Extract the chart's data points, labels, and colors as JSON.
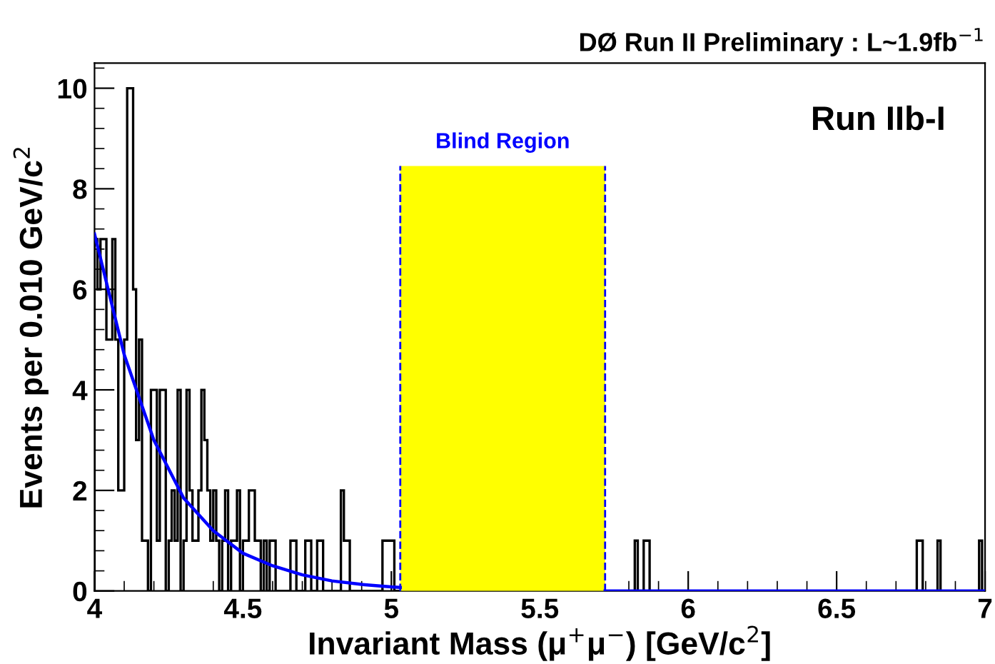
{
  "chart_data": {
    "type": "histogram",
    "title": "DØ Run II Preliminary : L~1.9fb$^{−1}$",
    "xlabel": "Invariant Mass (μ$^{+}$μ$^{−}$) [GeV/c$^{2}$]",
    "ylabel": "Events per 0.010 GeV/c$^{2}$",
    "annotations": [
      "Run IIb-I"
    ],
    "bins": [
      4.0,
      4.01,
      4.02,
      4.03,
      4.04,
      4.05,
      4.06,
      4.07,
      4.08,
      4.09,
      4.1,
      4.11,
      4.12,
      4.13,
      4.14,
      4.15,
      4.16,
      4.17,
      4.18,
      4.19,
      4.2,
      4.21,
      4.22,
      4.23,
      4.24,
      4.25,
      4.26,
      4.27,
      4.28,
      4.29,
      4.3,
      4.31,
      4.32,
      4.33,
      4.34,
      4.35,
      4.36,
      4.37,
      4.38,
      4.39,
      4.4,
      4.41,
      4.42,
      4.43,
      4.44,
      4.45,
      4.46,
      4.47,
      4.48,
      4.49,
      4.5,
      4.51,
      4.52,
      4.53,
      4.54,
      4.55,
      4.56,
      4.57,
      4.58,
      4.59,
      4.6,
      4.61,
      4.62,
      4.63,
      4.64,
      4.65,
      4.66,
      4.67,
      4.68,
      4.69,
      4.7,
      4.71,
      4.72,
      4.73,
      4.74,
      4.75,
      4.76,
      4.77,
      4.78,
      4.79,
      4.8,
      4.81,
      4.82,
      4.83,
      4.84,
      4.85,
      4.86,
      4.87,
      4.88,
      4.89,
      4.9,
      4.91,
      4.92,
      4.93,
      4.94,
      4.95,
      4.96,
      4.97,
      4.98,
      4.99,
      5.0,
      5.01,
      5.02,
      5.03,
      5.04,
      5.05,
      5.06,
      5.07,
      5.08,
      5.09,
      5.1,
      5.11,
      5.12,
      5.13,
      5.14,
      5.15,
      5.16,
      5.17,
      5.18,
      5.19,
      5.2,
      5.21,
      5.22,
      5.23,
      5.24,
      5.25,
      5.26,
      5.27,
      5.28,
      5.29,
      5.3,
      5.31,
      5.32,
      5.33,
      5.34,
      5.35,
      5.36,
      5.37,
      5.38,
      5.39,
      5.4,
      5.41,
      5.42,
      5.43,
      5.44,
      5.45,
      5.46,
      5.47,
      5.48,
      5.49,
      5.5,
      5.51,
      5.52,
      5.53,
      5.54,
      5.55,
      5.56,
      5.57,
      5.58,
      5.59,
      5.6,
      5.61,
      5.62,
      5.63,
      5.64,
      5.65,
      5.66,
      5.67,
      5.68,
      5.69,
      5.7,
      5.71,
      5.72,
      5.73,
      5.74,
      5.75,
      5.76,
      5.77,
      5.78,
      5.79,
      5.8,
      5.81,
      5.82,
      5.83,
      5.84,
      5.85,
      5.86,
      5.87,
      5.88,
      5.89,
      5.9,
      5.91,
      5.92,
      5.93,
      5.94,
      5.95,
      5.96,
      5.97,
      5.98,
      5.99,
      6.0,
      6.01,
      6.02,
      6.03,
      6.04,
      6.05,
      6.06,
      6.07,
      6.08,
      6.09,
      6.1,
      6.11,
      6.12,
      6.13,
      6.14,
      6.15,
      6.16,
      6.17,
      6.18,
      6.19,
      6.2,
      6.21,
      6.22,
      6.23,
      6.24,
      6.25,
      6.26,
      6.27,
      6.28,
      6.29,
      6.3,
      6.31,
      6.32,
      6.33,
      6.34,
      6.35,
      6.36,
      6.37,
      6.38,
      6.39,
      6.4,
      6.41,
      6.42,
      6.43,
      6.44,
      6.45,
      6.46,
      6.47,
      6.48,
      6.49,
      6.5,
      6.51,
      6.52,
      6.53,
      6.54,
      6.55,
      6.56,
      6.57,
      6.58,
      6.59,
      6.6,
      6.61,
      6.62,
      6.63,
      6.64,
      6.65,
      6.66,
      6.67,
      6.68,
      6.69,
      6.7,
      6.71,
      6.72,
      6.73,
      6.74,
      6.75,
      6.76,
      6.77,
      6.78,
      6.79,
      6.8,
      6.81,
      6.82,
      6.83,
      6.84,
      6.85,
      6.86,
      6.87,
      6.88,
      6.89,
      6.9,
      6.91,
      6.92,
      6.93,
      6.94,
      6.95,
      6.96,
      6.97,
      6.98,
      6.99,
      7.0
    ],
    "series": [
      {
        "color": "#000000",
        "values": [
          7,
          6,
          7,
          7,
          5,
          5,
          7,
          5,
          2,
          2,
          5,
          10,
          10,
          6,
          3,
          5,
          1,
          1,
          0,
          4,
          4,
          1,
          4,
          4,
          0,
          1,
          2,
          1,
          4,
          0,
          1,
          4,
          2,
          1,
          1,
          2,
          4,
          3,
          2,
          1,
          2,
          1,
          0,
          1,
          2,
          0,
          1,
          1,
          2,
          0,
          1,
          1,
          2,
          2,
          1,
          1,
          0,
          1,
          0,
          1,
          1,
          0,
          0,
          0,
          0,
          0,
          1,
          1,
          0,
          0,
          0,
          1,
          1,
          0,
          0,
          1,
          1,
          0,
          0,
          0,
          0,
          0,
          0,
          2,
          1,
          1,
          0,
          0,
          0,
          0,
          0,
          0,
          0,
          0,
          0,
          0,
          0,
          1,
          1,
          1,
          1,
          0,
          0,
          0,
          0,
          0,
          0,
          0,
          0,
          0,
          0,
          0,
          0,
          0,
          0,
          0,
          0,
          0,
          0,
          0,
          0,
          0,
          0,
          0,
          0,
          0,
          0,
          0,
          0,
          0,
          0,
          0,
          0,
          0,
          0,
          0,
          0,
          0,
          0,
          0,
          0,
          0,
          0,
          0,
          0,
          0,
          0,
          0,
          0,
          0,
          0,
          0,
          0,
          0,
          0,
          0,
          0,
          0,
          0,
          0,
          0,
          0,
          0,
          0,
          0,
          0,
          0,
          0,
          0,
          0,
          0,
          0,
          0,
          0,
          0,
          0,
          0,
          0,
          0,
          0,
          0,
          0,
          1,
          0,
          0,
          1,
          1,
          0,
          0,
          0,
          0,
          0,
          0,
          0,
          0,
          0,
          0,
          0,
          0,
          0,
          0,
          0,
          0,
          0,
          0,
          0,
          0,
          0,
          0,
          0,
          0,
          0,
          0,
          0,
          0,
          0,
          0,
          0,
          0,
          0,
          0,
          0,
          0,
          0,
          0,
          0,
          0,
          0,
          0,
          0,
          0,
          0,
          0,
          0,
          0,
          0,
          0,
          0,
          0,
          0,
          0,
          0,
          0,
          0,
          0,
          0,
          0,
          0,
          0,
          0,
          0,
          0,
          0,
          0,
          0,
          0,
          0,
          0,
          0,
          0,
          0,
          0,
          0,
          0,
          0,
          0,
          0,
          0,
          0,
          0,
          0,
          0,
          0,
          0,
          0,
          0,
          0,
          1,
          1,
          0,
          0,
          0,
          0,
          0,
          1,
          0,
          0,
          0,
          0,
          0,
          0,
          0,
          0,
          0,
          0,
          0,
          0,
          0,
          1,
          0
        ]
      },
      {
        "type": "line",
        "color": "#0000ff",
        "x": [
          4.0,
          4.1,
          4.2,
          4.3,
          4.4,
          4.5,
          4.6,
          4.7,
          4.8,
          4.9,
          5.0,
          5.03,
          5.4,
          5.72,
          7.0
        ],
        "values": [
          7.1,
          4.7,
          3.0,
          1.85,
          1.2,
          0.75,
          0.5,
          0.32,
          0.2,
          0.13,
          0.08,
          0.07,
          null,
          0,
          0
        ]
      }
    ],
    "bands": [
      {
        "axis": "x",
        "from": 5.03,
        "to": 5.72,
        "label": "Blind Region",
        "color": "#ffff00"
      }
    ],
    "ref_lines": [
      {
        "axis": "x",
        "value": 5.03,
        "color": "#0000ff",
        "line_style": "dashed"
      },
      {
        "axis": "x",
        "value": 5.72,
        "color": "#0000ff",
        "line_style": "dashed"
      }
    ],
    "xlim": [
      4,
      7
    ],
    "ylim": [
      0,
      10.5
    ],
    "xticks": [
      4,
      4.5,
      5,
      5.5,
      6,
      6.5,
      7
    ],
    "yticks": [
      0,
      2,
      4,
      6,
      8,
      10
    ],
    "grid": false,
    "legend": false
  }
}
